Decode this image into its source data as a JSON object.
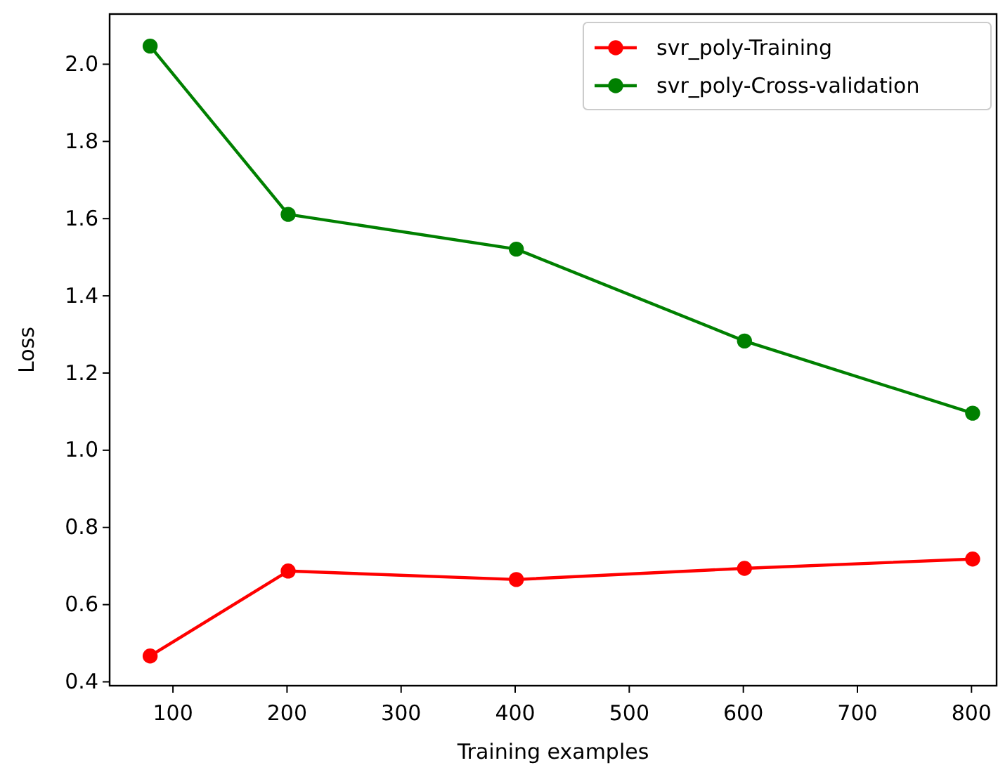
{
  "chart_data": {
    "type": "line",
    "xlabel": "Training examples",
    "ylabel": "Loss",
    "xlim": [
      44.5,
      822
    ],
    "xticks": [
      100,
      200,
      300,
      400,
      500,
      600,
      700,
      800
    ],
    "ylim": [
      0.39,
      2.13
    ],
    "yticks": [
      0.4,
      0.6,
      0.8,
      {
        "value": 1,
        "label": "1.0"
      },
      1.2,
      1.4,
      1.6,
      1.8,
      {
        "value": 2,
        "label": "2.0"
      }
    ],
    "x": [
      80,
      201,
      401,
      601,
      801
    ],
    "series": [
      {
        "name": "svr_poly-Training",
        "color": "#ff0000",
        "values": [
          0.467,
          0.687,
          0.665,
          0.694,
          0.718
        ]
      },
      {
        "name": "svr_poly-Cross-validation",
        "color": "#008000",
        "values": [
          2.047,
          1.611,
          1.521,
          1.283,
          1.096
        ]
      }
    ],
    "marker": "circle",
    "line_style": "solid",
    "legend": "top right",
    "grid": false
  }
}
